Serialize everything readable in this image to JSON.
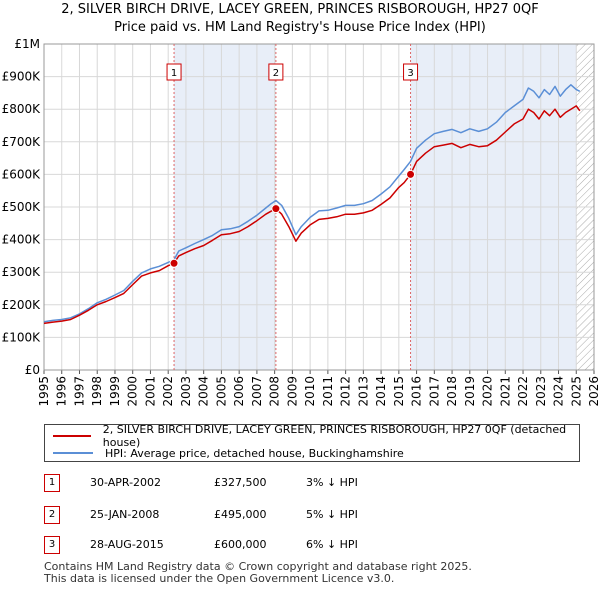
{
  "title_line1": "2, SILVER BIRCH DRIVE, LACEY GREEN, PRINCES RISBOROUGH, HP27 0QF",
  "title_line2": "Price paid vs. HM Land Registry's House Price Index (HPI)",
  "colors": {
    "property": "#cc0000",
    "hpi": "#5b8fd6",
    "shade": "#e8eef8",
    "hatch": "#999999"
  },
  "chart_data": {
    "type": "line",
    "xlim": [
      1995,
      2026
    ],
    "ylim": [
      0,
      1000000
    ],
    "x_ticks": [
      "1995",
      "1996",
      "1997",
      "1998",
      "1999",
      "2000",
      "2001",
      "2002",
      "2003",
      "2004",
      "2005",
      "2006",
      "2007",
      "2008",
      "2009",
      "2010",
      "2011",
      "2012",
      "2013",
      "2014",
      "2015",
      "2016",
      "2017",
      "2018",
      "2019",
      "2020",
      "2021",
      "2022",
      "2023",
      "2024",
      "2025",
      "2026"
    ],
    "y_ticks": [
      {
        "value": 0,
        "label": "£0"
      },
      {
        "value": 100000,
        "label": "£100K"
      },
      {
        "value": 200000,
        "label": "£200K"
      },
      {
        "value": 300000,
        "label": "£300K"
      },
      {
        "value": 400000,
        "label": "£400K"
      },
      {
        "value": 500000,
        "label": "£500K"
      },
      {
        "value": 600000,
        "label": "£600K"
      },
      {
        "value": 700000,
        "label": "£700K"
      },
      {
        "value": 800000,
        "label": "£800K"
      },
      {
        "value": 900000,
        "label": "£900K"
      },
      {
        "value": 1000000,
        "label": "£1M"
      }
    ],
    "series": [
      {
        "name": "2, SILVER BIRCH DRIVE, LACEY GREEN, PRINCES RISBOROUGH, HP27 0QF (detached house)",
        "x": [
          1995.0,
          1995.5,
          1996.0,
          1996.5,
          1997.0,
          1997.5,
          1998.0,
          1998.5,
          1999.0,
          1999.5,
          2000.0,
          2000.5,
          2001.0,
          2001.5,
          2002.0,
          2002.33,
          2002.6,
          2003.0,
          2003.5,
          2004.0,
          2004.5,
          2005.0,
          2005.5,
          2006.0,
          2006.5,
          2007.0,
          2007.5,
          2007.8,
          2008.07,
          2008.4,
          2008.8,
          2009.2,
          2009.5,
          2010.0,
          2010.5,
          2011.0,
          2011.5,
          2012.0,
          2012.5,
          2013.0,
          2013.5,
          2014.0,
          2014.5,
          2015.0,
          2015.3,
          2015.66,
          2016.0,
          2016.5,
          2017.0,
          2017.5,
          2018.0,
          2018.5,
          2019.0,
          2019.5,
          2020.0,
          2020.5,
          2021.0,
          2021.5,
          2022.0,
          2022.3,
          2022.6,
          2022.9,
          2023.2,
          2023.5,
          2023.8,
          2024.1,
          2024.4,
          2024.7,
          2025.0,
          2025.2
        ],
        "values": [
          143000,
          147000,
          150000,
          155000,
          168000,
          183000,
          200000,
          210000,
          222000,
          235000,
          262000,
          288000,
          298000,
          305000,
          320000,
          327500,
          350000,
          360000,
          372000,
          382000,
          398000,
          415000,
          418000,
          425000,
          440000,
          458000,
          478000,
          487000,
          495000,
          478000,
          440000,
          395000,
          420000,
          445000,
          462000,
          465000,
          470000,
          478000,
          478000,
          482000,
          490000,
          508000,
          528000,
          560000,
          575000,
          600000,
          640000,
          665000,
          685000,
          690000,
          695000,
          682000,
          692000,
          685000,
          688000,
          705000,
          730000,
          755000,
          770000,
          800000,
          790000,
          770000,
          795000,
          780000,
          800000,
          775000,
          790000,
          800000,
          810000,
          795000
        ]
      },
      {
        "name": "HPI: Average price, detached house, Buckinghamshire",
        "x": [
          1995.0,
          1995.5,
          1996.0,
          1996.5,
          1997.0,
          1997.5,
          1998.0,
          1998.5,
          1999.0,
          1999.5,
          2000.0,
          2000.5,
          2001.0,
          2001.5,
          2002.0,
          2002.33,
          2002.6,
          2003.0,
          2003.5,
          2004.0,
          2004.5,
          2005.0,
          2005.5,
          2006.0,
          2006.5,
          2007.0,
          2007.5,
          2007.8,
          2008.07,
          2008.4,
          2008.8,
          2009.2,
          2009.5,
          2010.0,
          2010.5,
          2011.0,
          2011.5,
          2012.0,
          2012.5,
          2013.0,
          2013.5,
          2014.0,
          2014.5,
          2015.0,
          2015.3,
          2015.66,
          2016.0,
          2016.5,
          2017.0,
          2017.5,
          2018.0,
          2018.5,
          2019.0,
          2019.5,
          2020.0,
          2020.5,
          2021.0,
          2021.5,
          2022.0,
          2022.3,
          2022.6,
          2022.9,
          2023.2,
          2023.5,
          2023.8,
          2024.1,
          2024.4,
          2024.7,
          2025.0,
          2025.2
        ],
        "values": [
          148000,
          152000,
          155000,
          160000,
          172000,
          188000,
          206000,
          217000,
          230000,
          244000,
          272000,
          298000,
          310000,
          318000,
          330000,
          338000,
          365000,
          375000,
          388000,
          400000,
          413000,
          430000,
          433000,
          440000,
          456000,
          475000,
          497000,
          510000,
          520000,
          505000,
          465000,
          415000,
          440000,
          468000,
          488000,
          490000,
          497000,
          505000,
          505000,
          510000,
          520000,
          540000,
          562000,
          595000,
          615000,
          640000,
          680000,
          705000,
          725000,
          732000,
          738000,
          728000,
          740000,
          732000,
          740000,
          760000,
          790000,
          810000,
          830000,
          865000,
          855000,
          835000,
          860000,
          845000,
          870000,
          840000,
          860000,
          875000,
          860000,
          855000
        ]
      }
    ],
    "sales": [
      {
        "label": "1",
        "x": 2002.33,
        "value": 327500
      },
      {
        "label": "2",
        "x": 2008.07,
        "value": 495000
      },
      {
        "label": "3",
        "x": 2015.66,
        "value": 600000
      }
    ],
    "shaded_ranges": [
      [
        2002.33,
        2008.07
      ],
      [
        2015.66,
        2025.0
      ]
    ],
    "hatch_from": 2025.0
  },
  "legend": {
    "property": "2, SILVER BIRCH DRIVE, LACEY GREEN, PRINCES RISBOROUGH, HP27 0QF (detached house)",
    "hpi": "HPI: Average price, detached house, Buckinghamshire"
  },
  "sales_table": [
    {
      "num": "1",
      "date": "30-APR-2002",
      "price": "£327,500",
      "hpi": "3% ↓ HPI"
    },
    {
      "num": "2",
      "date": "25-JAN-2008",
      "price": "£495,000",
      "hpi": "5% ↓ HPI"
    },
    {
      "num": "3",
      "date": "28-AUG-2015",
      "price": "£600,000",
      "hpi": "6% ↓ HPI"
    }
  ],
  "footer_line1": "Contains HM Land Registry data © Crown copyright and database right 2025.",
  "footer_line2": "This data is licensed under the Open Government Licence v3.0."
}
